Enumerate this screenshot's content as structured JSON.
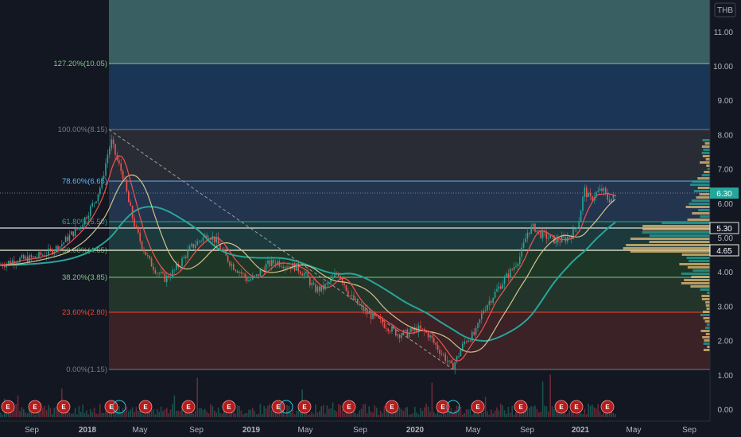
{
  "currency": "THB",
  "y_axis_labels": [
    "11.00",
    "10.00",
    "9.00",
    "8.00",
    "7.00",
    "6.00",
    "5.00",
    "4.00",
    "3.00",
    "2.00",
    "1.00",
    "0.00"
  ],
  "x_axis_labels": [
    "Sep",
    "2018",
    "May",
    "Sep",
    "2019",
    "May",
    "Sep",
    "2020",
    "May",
    "Sep",
    "2021",
    "May",
    "Sep"
  ],
  "price_tags": {
    "last": "6.30",
    "level_high": "5.30",
    "level_low": "4.65"
  },
  "colors": {
    "background": "#131722",
    "candle_up": "#26a69a",
    "candle_down": "#ef5350",
    "ma_fast": "#ef5350",
    "ma_mid": "#d1c28a",
    "ma_slow": "#26a69a",
    "volume_profile": "#e5c07b",
    "earnings_badge": "#b71c1c"
  },
  "fib_levels": [
    {
      "label": "127.20%(10.05)",
      "price": 10.05,
      "color": "#81c784"
    },
    {
      "label": "100.00%(8.15)",
      "price": 8.15,
      "color": "#787b86"
    },
    {
      "label": "78.60%(6.65)",
      "price": 6.65,
      "color": "#64b5f6"
    },
    {
      "label": "61.80%(5.50)",
      "price": 5.5,
      "color": "#26a69a"
    },
    {
      "label": "50.00%(4.65)",
      "price": 4.65,
      "color": "#4caf50"
    },
    {
      "label": "38.20%(3.85)",
      "price": 3.85,
      "color": "#81c784"
    },
    {
      "label": "23.60%(2.80)",
      "price": 2.8,
      "color": "#f44336"
    },
    {
      "label": "0.00%(1.15)",
      "price": 1.15,
      "color": "#787b86"
    }
  ],
  "earnings_marker_label": "E"
}
